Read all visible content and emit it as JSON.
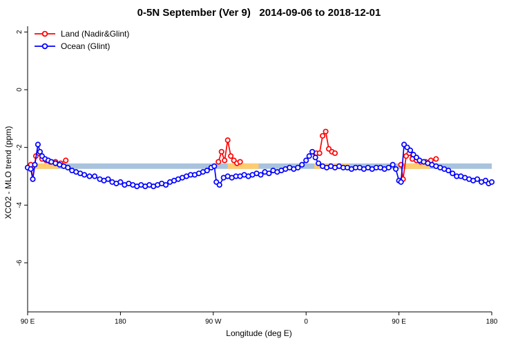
{
  "chart_data": {
    "type": "line",
    "title": "0-5N September (Ver 9)   2014-09-06 to 2018-12-01",
    "xlabel": "Longitude (deg E)",
    "ylabel": "XCO2 - MLO trend (ppm)",
    "xlim": [
      90,
      540
    ],
    "ylim": [
      -7.7,
      2.2
    ],
    "grid": "off",
    "legend_position": "top-left-inside",
    "x_ticks": [
      {
        "value": 90,
        "label": "90 E"
      },
      {
        "value": 180,
        "label": "180"
      },
      {
        "value": 270,
        "label": "90 W"
      },
      {
        "value": 360,
        "label": "0"
      },
      {
        "value": 450,
        "label": "90 E"
      },
      {
        "value": 540,
        "label": "180"
      }
    ],
    "y_ticks": [
      {
        "value": 2,
        "label": "2"
      },
      {
        "value": 0,
        "label": "0"
      },
      {
        "value": -2,
        "label": "-2"
      },
      {
        "value": -4,
        "label": "-4"
      },
      {
        "value": -6,
        "label": "-6"
      }
    ],
    "bands": {
      "y": -2.65,
      "half_height": 0.095,
      "reference_color": "#a9c3dd",
      "highlight_color": "#ffcc70",
      "reference_range": [
        90,
        540
      ],
      "highlight_segments": [
        [
          95,
          120
        ],
        [
          284,
          314
        ],
        [
          368,
          402
        ],
        [
          455,
          480
        ]
      ]
    },
    "series": [
      {
        "name": "Land (Nadir&Glint)",
        "color": "#ff0000",
        "marker": "open-circle",
        "gap_break": 20,
        "points": [
          [
            93,
            -2.6
          ],
          [
            95,
            -3.1
          ],
          [
            98,
            -2.3
          ],
          [
            101,
            -2.2
          ],
          [
            104,
            -2.4
          ],
          [
            108,
            -2.45
          ],
          [
            112,
            -2.5
          ],
          [
            117,
            -2.5
          ],
          [
            122,
            -2.55
          ],
          [
            127,
            -2.45
          ],
          [
            275,
            -2.5
          ],
          [
            278,
            -2.15
          ],
          [
            281,
            -2.45
          ],
          [
            284,
            -1.75
          ],
          [
            287,
            -2.3
          ],
          [
            290,
            -2.45
          ],
          [
            293,
            -2.55
          ],
          [
            296,
            -2.5
          ],
          [
            370,
            -2.2
          ],
          [
            373,
            -2.2
          ],
          [
            376,
            -1.6
          ],
          [
            379,
            -1.45
          ],
          [
            382,
            -2.05
          ],
          [
            385,
            -2.15
          ],
          [
            388,
            -2.2
          ],
          [
            452,
            -2.6
          ],
          [
            454,
            -3.1
          ],
          [
            457,
            -2.3
          ],
          [
            460,
            -2.2
          ],
          [
            463,
            -2.4
          ],
          [
            467,
            -2.45
          ],
          [
            471,
            -2.5
          ],
          [
            476,
            -2.5
          ],
          [
            481,
            -2.45
          ],
          [
            486,
            -2.4
          ]
        ]
      },
      {
        "name": "Ocean (Glint)",
        "color": "#0000ff",
        "marker": "open-circle",
        "gap_break": 60,
        "points": [
          [
            90,
            -2.7
          ],
          [
            93,
            -2.75
          ],
          [
            95,
            -3.1
          ],
          [
            97,
            -2.6
          ],
          [
            100,
            -1.9
          ],
          [
            102,
            -2.15
          ],
          [
            104,
            -2.3
          ],
          [
            107,
            -2.4
          ],
          [
            110,
            -2.45
          ],
          [
            113,
            -2.5
          ],
          [
            117,
            -2.55
          ],
          [
            121,
            -2.6
          ],
          [
            125,
            -2.65
          ],
          [
            129,
            -2.7
          ],
          [
            133,
            -2.8
          ],
          [
            137,
            -2.85
          ],
          [
            141,
            -2.9
          ],
          [
            145,
            -2.95
          ],
          [
            150,
            -3.0
          ],
          [
            155,
            -3.0
          ],
          [
            160,
            -3.1
          ],
          [
            164,
            -3.15
          ],
          [
            168,
            -3.1
          ],
          [
            172,
            -3.2
          ],
          [
            176,
            -3.25
          ],
          [
            180,
            -3.2
          ],
          [
            184,
            -3.3
          ],
          [
            188,
            -3.25
          ],
          [
            192,
            -3.3
          ],
          [
            196,
            -3.35
          ],
          [
            200,
            -3.3
          ],
          [
            204,
            -3.35
          ],
          [
            208,
            -3.3
          ],
          [
            212,
            -3.35
          ],
          [
            216,
            -3.3
          ],
          [
            220,
            -3.25
          ],
          [
            224,
            -3.3
          ],
          [
            228,
            -3.2
          ],
          [
            232,
            -3.15
          ],
          [
            236,
            -3.1
          ],
          [
            240,
            -3.05
          ],
          [
            244,
            -3.0
          ],
          [
            248,
            -2.95
          ],
          [
            252,
            -2.95
          ],
          [
            256,
            -2.9
          ],
          [
            260,
            -2.85
          ],
          [
            264,
            -2.8
          ],
          [
            268,
            -2.7
          ],
          [
            271,
            -2.65
          ],
          [
            273,
            -3.2
          ],
          [
            276,
            -3.3
          ],
          [
            280,
            -3.05
          ],
          [
            284,
            -3.0
          ],
          [
            288,
            -3.05
          ],
          [
            292,
            -3.0
          ],
          [
            296,
            -3.0
          ],
          [
            300,
            -2.95
          ],
          [
            304,
            -3.0
          ],
          [
            308,
            -2.95
          ],
          [
            312,
            -2.9
          ],
          [
            316,
            -2.95
          ],
          [
            320,
            -2.85
          ],
          [
            324,
            -2.9
          ],
          [
            328,
            -2.8
          ],
          [
            332,
            -2.85
          ],
          [
            336,
            -2.8
          ],
          [
            340,
            -2.75
          ],
          [
            344,
            -2.7
          ],
          [
            348,
            -2.75
          ],
          [
            352,
            -2.7
          ],
          [
            356,
            -2.6
          ],
          [
            360,
            -2.45
          ],
          [
            363,
            -2.3
          ],
          [
            366,
            -2.15
          ],
          [
            369,
            -2.35
          ],
          [
            372,
            -2.55
          ],
          [
            376,
            -2.65
          ],
          [
            380,
            -2.7
          ],
          [
            384,
            -2.65
          ],
          [
            388,
            -2.7
          ],
          [
            392,
            -2.65
          ],
          [
            396,
            -2.7
          ],
          [
            400,
            -2.7
          ],
          [
            404,
            -2.75
          ],
          [
            408,
            -2.7
          ],
          [
            412,
            -2.7
          ],
          [
            416,
            -2.75
          ],
          [
            420,
            -2.7
          ],
          [
            424,
            -2.75
          ],
          [
            428,
            -2.7
          ],
          [
            432,
            -2.7
          ],
          [
            436,
            -2.75
          ],
          [
            440,
            -2.7
          ],
          [
            444,
            -2.6
          ],
          [
            447,
            -2.75
          ],
          [
            450,
            -3.15
          ],
          [
            452,
            -3.2
          ],
          [
            455,
            -1.9
          ],
          [
            458,
            -2.0
          ],
          [
            461,
            -2.1
          ],
          [
            464,
            -2.25
          ],
          [
            467,
            -2.35
          ],
          [
            470,
            -2.45
          ],
          [
            474,
            -2.5
          ],
          [
            478,
            -2.55
          ],
          [
            482,
            -2.6
          ],
          [
            486,
            -2.65
          ],
          [
            490,
            -2.7
          ],
          [
            494,
            -2.75
          ],
          [
            498,
            -2.8
          ],
          [
            502,
            -2.9
          ],
          [
            506,
            -3.0
          ],
          [
            510,
            -3.0
          ],
          [
            514,
            -3.05
          ],
          [
            518,
            -3.1
          ],
          [
            522,
            -3.15
          ],
          [
            526,
            -3.1
          ],
          [
            530,
            -3.2
          ],
          [
            534,
            -3.15
          ],
          [
            537,
            -3.25
          ],
          [
            540,
            -3.2
          ]
        ]
      }
    ]
  }
}
